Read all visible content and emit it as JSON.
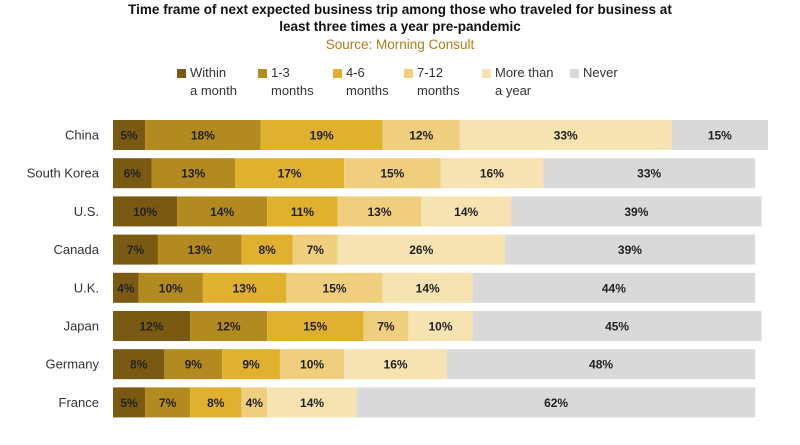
{
  "chart_data": {
    "type": "bar",
    "orientation": "horizontal",
    "stacked": true,
    "title_lines": [
      "Time frame of next expected business trip among those who traveled for business at",
      "least three times a year pre-pandemic"
    ],
    "source": "Source: Morning Consult",
    "categories": [
      "China",
      "South Korea",
      "U.S.",
      "Canada",
      "U.K.",
      "Japan",
      "Germany",
      "France"
    ],
    "series": [
      {
        "name": "Within a month",
        "legend_lines": [
          "Within",
          "a month"
        ],
        "color": "#7a5a12",
        "values": [
          5,
          6,
          10,
          7,
          4,
          12,
          8,
          5
        ]
      },
      {
        "name": "1-3 months",
        "legend_lines": [
          "1-3",
          "months"
        ],
        "color": "#b28a1f",
        "values": [
          18,
          13,
          14,
          13,
          10,
          12,
          9,
          7
        ]
      },
      {
        "name": "4-6 months",
        "legend_lines": [
          "4-6",
          "months"
        ],
        "color": "#e0b12e",
        "values": [
          19,
          17,
          11,
          8,
          13,
          15,
          9,
          8
        ]
      },
      {
        "name": "7-12 months",
        "legend_lines": [
          "7-12",
          "months"
        ],
        "color": "#efcf7e",
        "values": [
          12,
          15,
          13,
          7,
          15,
          7,
          10,
          4
        ]
      },
      {
        "name": "More than a year",
        "legend_lines": [
          "More than",
          "a year"
        ],
        "color": "#f6e3b1",
        "values": [
          33,
          16,
          14,
          26,
          14,
          10,
          16,
          14
        ]
      },
      {
        "name": "Never",
        "legend_lines": [
          "Never"
        ],
        "color": "#d9d9d9",
        "values": [
          15,
          33,
          39,
          39,
          44,
          45,
          48,
          62
        ]
      }
    ],
    "value_suffix": "%",
    "xlim": [
      0,
      102
    ],
    "legend_position": "top"
  }
}
